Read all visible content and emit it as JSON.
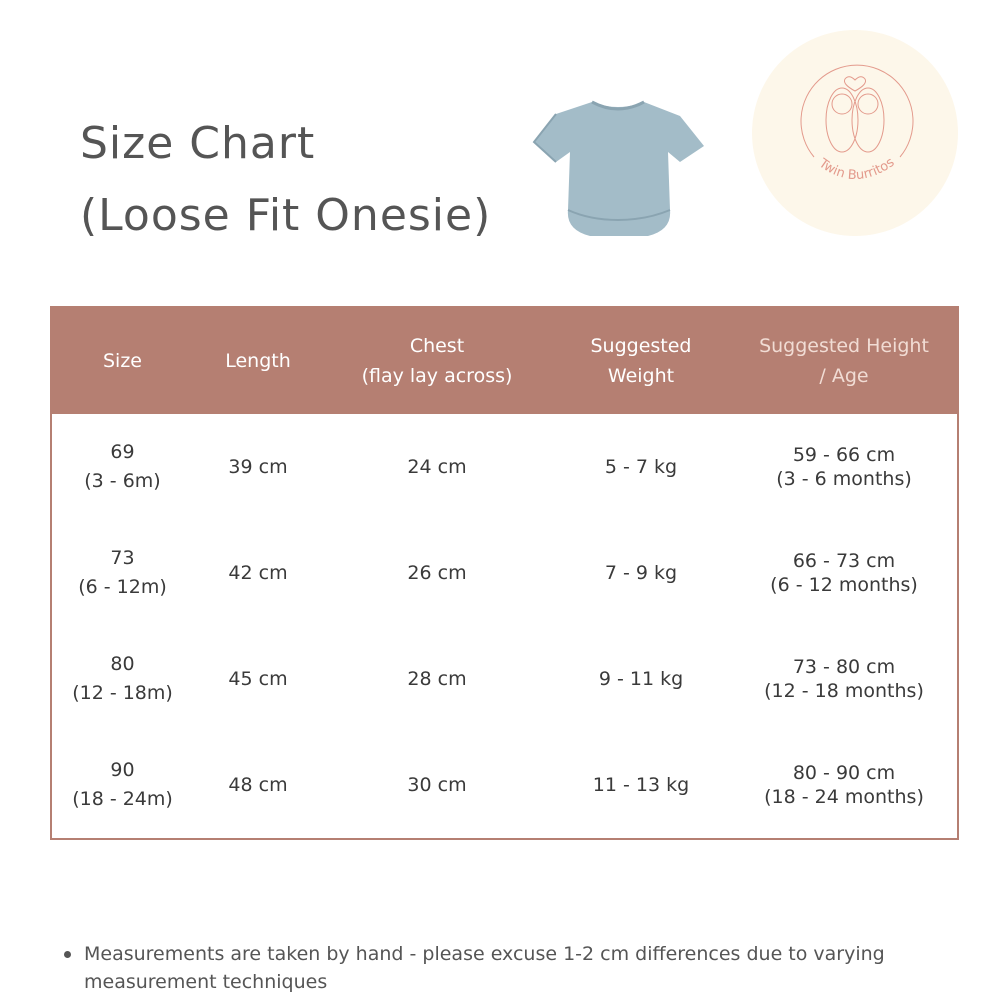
{
  "title": {
    "line1": "Size Chart",
    "line2": "(Loose Fit Onesie)"
  },
  "logo": {
    "text": "Twin Burritos",
    "bg": "#fdf7ea",
    "stroke": "#e39a8c"
  },
  "colors": {
    "header_bg": "#b57f72",
    "onesie": "#a3bcc8"
  },
  "table": {
    "headers": [
      {
        "line1": "Size",
        "line2": ""
      },
      {
        "line1": "Length",
        "line2": ""
      },
      {
        "line1": "Chest",
        "line2": "(flay lay across)"
      },
      {
        "line1": "Suggested",
        "line2": "Weight"
      },
      {
        "line1": "Suggested Height",
        "line2": "/ Age"
      }
    ],
    "rows": [
      {
        "size": "69",
        "age": "(3 - 6m)",
        "length": "39 cm",
        "chest": "24 cm",
        "weight": "5 - 7 kg",
        "height": "59 - 66 cm",
        "months": "(3 - 6 months)"
      },
      {
        "size": "73",
        "age": "(6 - 12m)",
        "length": "42 cm",
        "chest": "26 cm",
        "weight": "7 - 9 kg",
        "height": "66 - 73 cm",
        "months": "(6 - 12 months)"
      },
      {
        "size": "80",
        "age": "(12 - 18m)",
        "length": "45 cm",
        "chest": "28 cm",
        "weight": "9 - 11 kg",
        "height": "73 - 80 cm",
        "months": "(12 - 18 months)"
      },
      {
        "size": "90",
        "age": "(18 - 24m)",
        "length": "48 cm",
        "chest": "30 cm",
        "weight": "11 - 13 kg",
        "height": "80 - 90 cm",
        "months": "(18 - 24 months)"
      }
    ]
  },
  "note": "Measurements are taken by hand - please excuse 1-2 cm differences due to varying measurement techniques"
}
